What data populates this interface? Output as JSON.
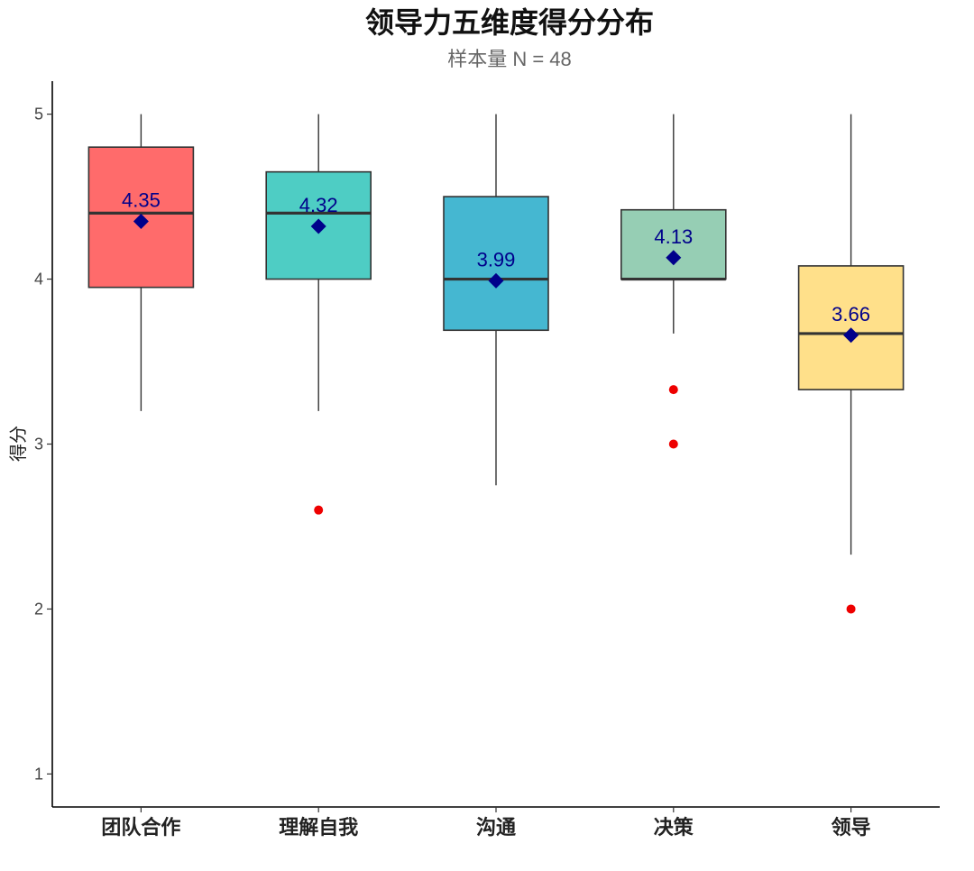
{
  "chart_data": {
    "type": "box",
    "title": "领导力五维度得分分布",
    "subtitle": "样本量 N = 48",
    "ylabel": "得分",
    "xlabel": "",
    "ylim": [
      0.8,
      5.2
    ],
    "yticks": [
      1,
      2,
      3,
      4,
      5
    ],
    "grid": false,
    "categories": [
      "团队合作",
      "理解自我",
      "沟通",
      "决策",
      "领导"
    ],
    "boxes": [
      {
        "category": "团队合作",
        "whisker_low": 3.2,
        "q1": 3.95,
        "median": 4.4,
        "q3": 4.8,
        "whisker_high": 5.0,
        "mean": 4.35,
        "mean_label": "4.35",
        "outliers": [],
        "color": "#ff6b6b"
      },
      {
        "category": "理解自我",
        "whisker_low": 3.2,
        "q1": 4.0,
        "median": 4.4,
        "q3": 4.65,
        "whisker_high": 5.0,
        "mean": 4.32,
        "mean_label": "4.32",
        "outliers": [
          2.6
        ],
        "color": "#4ecdc4"
      },
      {
        "category": "沟通",
        "whisker_low": 2.75,
        "q1": 3.69,
        "median": 4.0,
        "q3": 4.5,
        "whisker_high": 5.0,
        "mean": 3.99,
        "mean_label": "3.99",
        "outliers": [],
        "color": "#45b7d1"
      },
      {
        "category": "决策",
        "whisker_low": 3.67,
        "q1": 4.0,
        "median": 4.0,
        "q3": 4.42,
        "whisker_high": 5.0,
        "mean": 4.13,
        "mean_label": "4.13",
        "outliers": [
          3.33,
          3.0
        ],
        "color": "#96ceb4"
      },
      {
        "category": "领导",
        "whisker_low": 2.33,
        "q1": 3.33,
        "median": 3.67,
        "q3": 4.08,
        "whisker_high": 5.0,
        "mean": 3.66,
        "mean_label": "3.66",
        "outliers": [
          2.0
        ],
        "color": "#ffe08a"
      }
    ],
    "colors": {
      "outlier": "#ee0000",
      "mean_marker": "#00008b",
      "box_stroke": "#333333",
      "axis": "#000000"
    }
  }
}
